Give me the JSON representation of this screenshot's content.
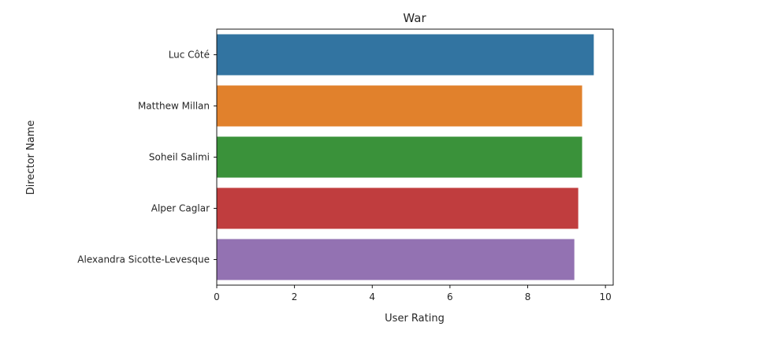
{
  "chart_data": {
    "type": "bar",
    "orientation": "horizontal",
    "title": "War",
    "xlabel": "User Rating",
    "ylabel": "Director Name",
    "categories": [
      "Luc Côté",
      "Matthew Millan",
      "Soheil Salimi",
      "Alper Caglar",
      "Alexandra Sicotte-Levesque"
    ],
    "values": [
      9.7,
      9.4,
      9.4,
      9.3,
      9.2
    ],
    "colors": [
      "#3274a1",
      "#e1812c",
      "#3a923a",
      "#c03d3e",
      "#9372b2"
    ],
    "xlim": [
      0,
      10.2
    ],
    "xticks": [
      0,
      2,
      4,
      6,
      8,
      10
    ],
    "grid": false
  }
}
